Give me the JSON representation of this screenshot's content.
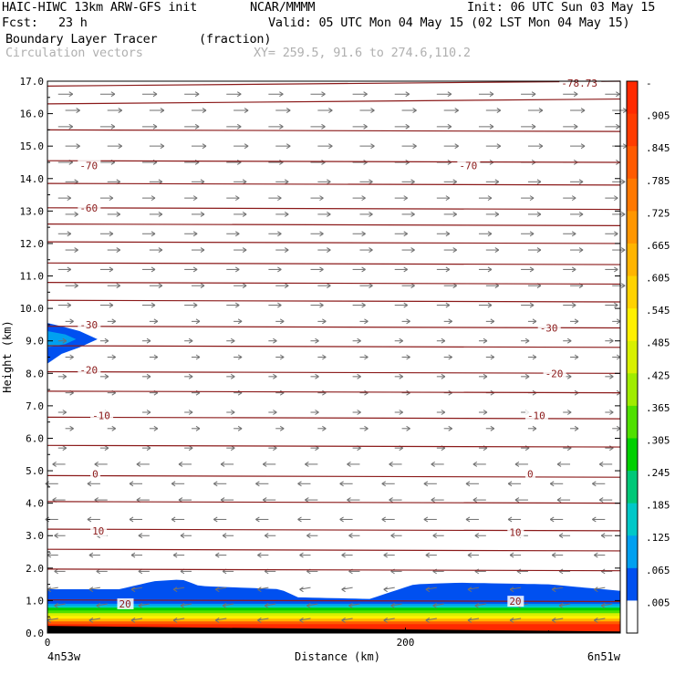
{
  "header": {
    "model": "HAIC-HIWC 13km ARW-GFS init",
    "org": "NCAR/MMMM",
    "init": "Init: 06 UTC Sun 03 May 15",
    "fcst_label": "Fcst:",
    "fcst_value": "23 h",
    "valid": "Valid: 05 UTC Mon 04 May 15 (02 LST Mon 04 May 15)",
    "field_name": "Boundary Layer Tracer",
    "field_units": "(fraction)",
    "vectors": "Circulation vectors",
    "xy": "XY= 259.5, 91.6 to 274.6,110.2"
  },
  "chart_data": {
    "type": "heatmap",
    "ylabel": "Height (km)",
    "xlabel": "Distance (km)",
    "x_left_label": "4n53w",
    "x_right_label": "6n51w",
    "xlim": [
      0,
      320
    ],
    "ylim": [
      0,
      17
    ],
    "x_ticks": [
      0,
      200
    ],
    "y_ticks": [
      "0.0",
      "1.0",
      "2.0",
      "3.0",
      "4.0",
      "5.0",
      "6.0",
      "7.0",
      "8.0",
      "9.0",
      "10.0",
      "11.0",
      "12.0",
      "13.0",
      "14.0",
      "15.0",
      "16.0",
      "17.0"
    ],
    "colorbar": {
      "labels": [
        "-",
        ".905",
        ".845",
        ".785",
        ".725",
        ".665",
        ".605",
        ".545",
        ".485",
        ".425",
        ".365",
        ".305",
        ".245",
        ".185",
        ".125",
        ".065",
        ".005"
      ],
      "colors": [
        "#ff2a00",
        "#ff3c00",
        "#ff5a00",
        "#ff7800",
        "#ff9600",
        "#ffb400",
        "#ffd200",
        "#fff000",
        "#d8f000",
        "#a0ec00",
        "#50e000",
        "#00d000",
        "#00c878",
        "#00c8c8",
        "#00a0f0",
        "#0050f0",
        "#ffffff"
      ]
    },
    "isotherm_labels": [
      {
        "value": "-70",
        "x": 18,
        "y": 14.4
      },
      {
        "value": "-70",
        "x": 230,
        "y": 14.4
      },
      {
        "value": "-60",
        "x": 18,
        "y": 13.1
      },
      {
        "value": "-30",
        "x": 18,
        "y": 9.5
      },
      {
        "value": "-30",
        "x": 275,
        "y": 9.4
      },
      {
        "value": "-20",
        "x": 18,
        "y": 8.1
      },
      {
        "value": "-20",
        "x": 278,
        "y": 8.0
      },
      {
        "value": "-10",
        "x": 25,
        "y": 6.7
      },
      {
        "value": "-10",
        "x": 268,
        "y": 6.7
      },
      {
        "value": "0",
        "x": 25,
        "y": 4.9
      },
      {
        "value": "0",
        "x": 268,
        "y": 4.9
      },
      {
        "value": "10",
        "x": 25,
        "y": 3.15
      },
      {
        "value": "10",
        "x": 258,
        "y": 3.1
      },
      {
        "value": "20",
        "x": 40,
        "y": 0.9
      },
      {
        "value": "20",
        "x": 258,
        "y": 0.98
      },
      {
        "value": "-78.73",
        "x": 287,
        "y": 16.95
      }
    ],
    "tracer_layer": {
      "surface_max_fraction": 0.995,
      "top_height_km_by_x": [
        [
          0,
          1.35
        ],
        [
          40,
          1.35
        ],
        [
          60,
          1.6
        ],
        [
          75,
          1.65
        ],
        [
          85,
          1.45
        ],
        [
          130,
          1.35
        ],
        [
          140,
          1.1
        ],
        [
          180,
          1.05
        ],
        [
          205,
          1.5
        ],
        [
          230,
          1.55
        ],
        [
          280,
          1.5
        ],
        [
          320,
          1.3
        ]
      ]
    },
    "aloft_tracer_blob": {
      "x_range": [
        0,
        28
      ],
      "center_height_km": 9.0,
      "fraction": 0.065
    }
  }
}
